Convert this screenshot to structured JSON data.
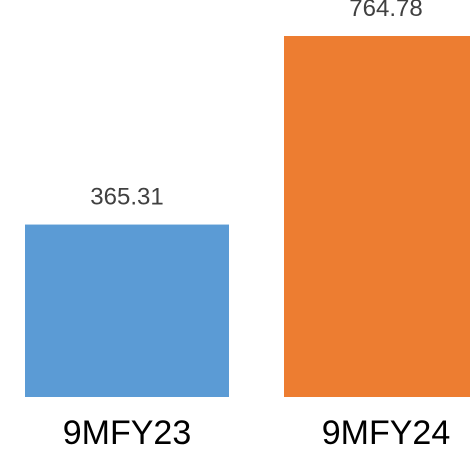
{
  "chart_data": {
    "type": "bar",
    "categories": [
      "9MFY23",
      "9MFY24"
    ],
    "values": [
      365.31,
      764.78
    ],
    "value_labels": [
      "365.31",
      "764.78"
    ],
    "colors": [
      "#5B9BD5",
      "#ED7D31"
    ],
    "title": "",
    "xlabel": "",
    "ylabel": "",
    "ylim": [
      0,
      800
    ],
    "grid": false,
    "legend": "none"
  }
}
